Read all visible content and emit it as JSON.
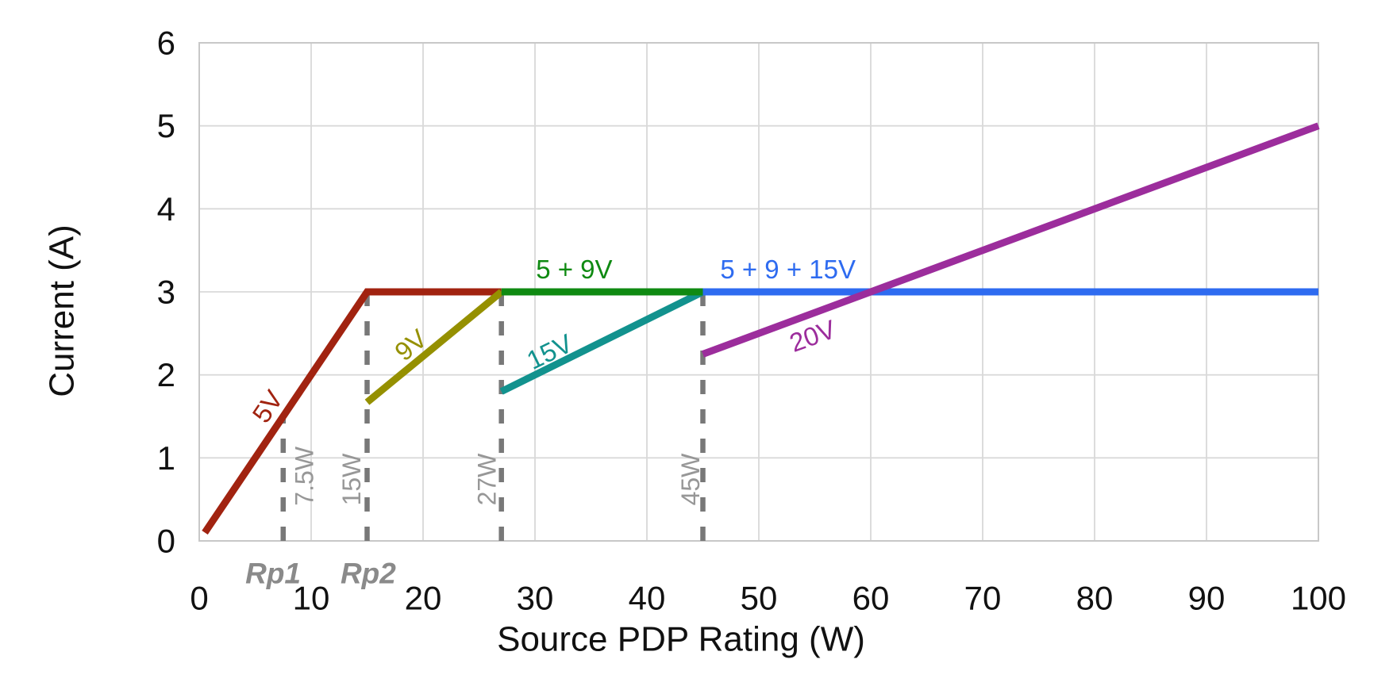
{
  "chart_data": {
    "type": "line",
    "title": "",
    "xlabel": "Source PDP Rating (W)",
    "ylabel": "Current (A)",
    "xlim": [
      0,
      100
    ],
    "ylim": [
      0,
      6
    ],
    "xticks": [
      "0",
      "10",
      "20",
      "30",
      "40",
      "50",
      "60",
      "70",
      "80",
      "90",
      "100"
    ],
    "yticks": [
      "0",
      "1",
      "2",
      "3",
      "4",
      "5",
      "6"
    ],
    "grid": true,
    "legend_position": "inline-labels-on-lines",
    "series": [
      {
        "name": "5V",
        "color": "#A12310",
        "points": [
          [
            0.5,
            0.1
          ],
          [
            15,
            3
          ],
          [
            27,
            3
          ]
        ],
        "label": {
          "x": 6.1,
          "y": 1.62,
          "rotate": -56
        }
      },
      {
        "name": "9V",
        "color": "#959000",
        "points": [
          [
            15,
            1.67
          ],
          [
            27,
            3
          ]
        ],
        "label": {
          "x": 18.9,
          "y": 2.36,
          "rotate": -40
        }
      },
      {
        "name": "15V",
        "color": "#12928E",
        "points": [
          [
            27,
            1.8
          ],
          [
            45,
            3
          ]
        ],
        "label": {
          "x": 31.3,
          "y": 2.28,
          "rotate": -26
        }
      },
      {
        "name": "5 + 9V",
        "color": "#0F8A12",
        "points": [
          [
            27,
            3
          ],
          [
            45,
            3
          ]
        ],
        "label": {
          "x": 33.5,
          "y": 3.27,
          "rotate": 0
        }
      },
      {
        "name": "5 + 9 + 15V",
        "color": "#2E6BF0",
        "points": [
          [
            45,
            3
          ],
          [
            100,
            3
          ]
        ],
        "label": {
          "x": 52.6,
          "y": 3.27,
          "rotate": 0
        }
      },
      {
        "name": "20V",
        "color": "#9C2D9C",
        "points": [
          [
            45,
            2.25
          ],
          [
            100,
            5
          ]
        ],
        "label": {
          "x": 54.8,
          "y": 2.47,
          "rotate": -20
        }
      }
    ],
    "reference_lines": [
      {
        "x": 7.5,
        "y_top": 1.5,
        "label": "7.5W",
        "label_x": 9.4,
        "label_y": 0.78,
        "sublabel": "Rp1",
        "sublabel_x": 6.6
      },
      {
        "x": 15,
        "y_top": 3,
        "label": "15W",
        "label_x": 13.6,
        "label_y": 0.74,
        "sublabel": "Rp2",
        "sublabel_x": 15.1
      },
      {
        "x": 27,
        "y_top": 3,
        "label": "27W",
        "label_x": 25.7,
        "label_y": 0.74,
        "sublabel": "",
        "sublabel_x": null
      },
      {
        "x": 45,
        "y_top": 3,
        "label": "45W",
        "label_x": 43.9,
        "label_y": 0.74,
        "sublabel": "",
        "sublabel_x": null
      }
    ],
    "colors": {
      "grid": "#D9D9D9",
      "plot_border": "#C8C8C8",
      "reference_dash": "#787878",
      "reference_label": "#979797",
      "sublabel": "#8A8A8A",
      "tick_text": "#111111"
    }
  }
}
